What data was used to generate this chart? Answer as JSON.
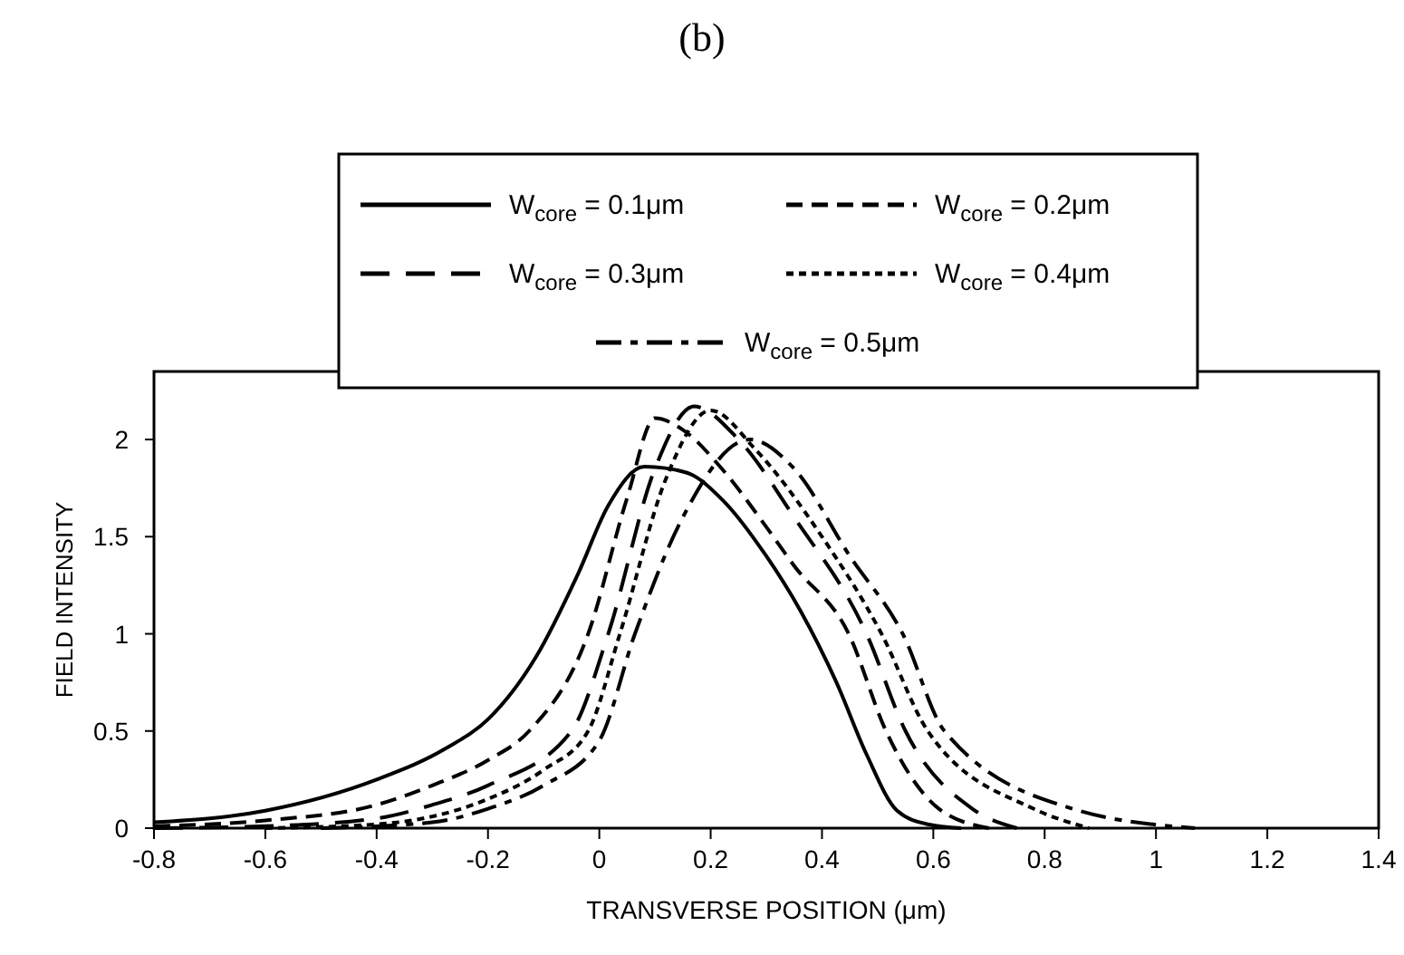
{
  "chart_data": {
    "type": "line",
    "title": "(b)",
    "xlabel": "TRANSVERSE POSITION (μm)",
    "ylabel": "FIELD INTENSITY",
    "xlim": [
      -0.8,
      1.4
    ],
    "xticks": [
      -0.8,
      -0.6,
      -0.4,
      -0.2,
      0,
      0.2,
      0.4,
      0.6,
      0.8,
      1,
      1.2,
      1.4
    ],
    "ylim": [
      0,
      2.35
    ],
    "yticks": [
      0,
      0.5,
      1,
      1.5,
      2
    ],
    "grid": false,
    "legend": "top",
    "series": [
      {
        "name": "W$_{core}$ = 0.1μm",
        "color": "#000000",
        "line_style": "solid",
        "x": [
          -0.8,
          -0.6,
          -0.4,
          -0.276,
          -0.2,
          -0.114,
          -0.038,
          0.016,
          0.081,
          0.156,
          0.221,
          0.3,
          0.361,
          0.426,
          0.48,
          0.535,
          0.59,
          0.65
        ],
        "values": [
          0.03,
          0.09,
          0.25,
          0.41,
          0.56,
          0.88,
          1.31,
          1.66,
          1.86,
          1.83,
          1.69,
          1.4,
          1.12,
          0.75,
          0.38,
          0.09,
          0.02,
          0
        ]
      },
      {
        "name": "W$_{core}$ = 0.2μm",
        "color": "#000000",
        "line_style": "dashed",
        "x": [
          -0.8,
          -0.6,
          -0.4,
          -0.3,
          -0.2,
          -0.126,
          -0.02,
          0.05,
          0.1,
          0.15,
          0.22,
          0.3,
          0.35,
          0.448,
          0.515,
          0.61,
          0.7
        ],
        "values": [
          0.01,
          0.04,
          0.12,
          0.22,
          0.35,
          0.5,
          1.0,
          1.7,
          2.11,
          2.05,
          1.85,
          1.55,
          1.35,
          1.0,
          0.5,
          0.1,
          0
        ]
      },
      {
        "name": "W$_{core}$ = 0.3μm",
        "color": "#000000",
        "line_style": "longdash",
        "x": [
          -0.8,
          -0.6,
          -0.4,
          -0.3,
          -0.2,
          -0.05,
          0.016,
          0.1,
          0.17,
          0.25,
          0.35,
          0.48,
          0.55,
          0.67,
          0.75
        ],
        "values": [
          0,
          0.01,
          0.05,
          0.12,
          0.22,
          0.5,
          1.0,
          1.85,
          2.17,
          2.0,
          1.6,
          1.0,
          0.5,
          0.1,
          0
        ]
      },
      {
        "name": "W$_{core}$ = 0.4μm",
        "color": "#000000",
        "line_style": "dotted",
        "x": [
          -0.6,
          -0.4,
          -0.3,
          -0.2,
          -0.1,
          -0.02,
          0.037,
          0.12,
          0.2,
          0.28,
          0.4,
          0.507,
          0.59,
          0.78,
          0.88
        ],
        "values": [
          0,
          0.02,
          0.06,
          0.15,
          0.3,
          0.5,
          1.0,
          1.8,
          2.15,
          1.95,
          1.5,
          1.0,
          0.5,
          0.1,
          0
        ]
      },
      {
        "name": "W$_{core}$ = 0.5μm",
        "color": "#000000",
        "line_style": "dashdot",
        "x": [
          -0.5,
          -0.3,
          -0.2,
          -0.1,
          0,
          0.064,
          0.15,
          0.27,
          0.35,
          0.45,
          0.545,
          0.62,
          0.85,
          1.07
        ],
        "values": [
          0,
          0.03,
          0.1,
          0.22,
          0.45,
          1.0,
          1.6,
          2.0,
          1.85,
          1.4,
          1.0,
          0.5,
          0.1,
          0
        ]
      }
    ]
  }
}
